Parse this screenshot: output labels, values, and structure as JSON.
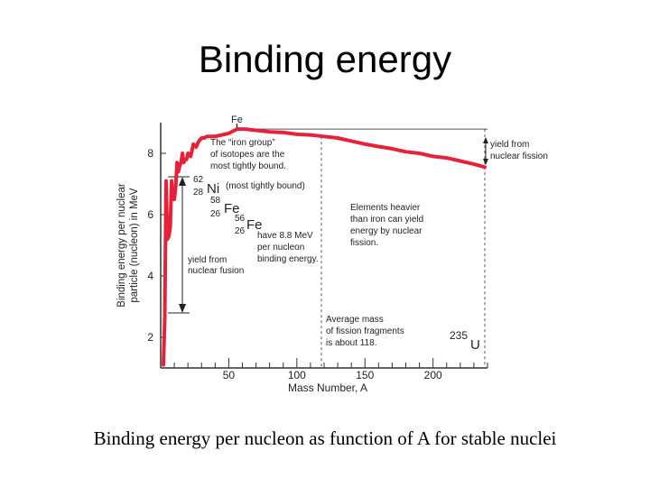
{
  "slide": {
    "title": "Binding energy",
    "caption": "Binding energy per nucleon as function of A for stable nuclei"
  },
  "chart_data": {
    "type": "line",
    "title": "",
    "xlabel": "Mass Number, A",
    "ylabel_line1": "Binding energy per nuclear",
    "ylabel_line2": "particle (nucleon) in MeV",
    "xlim": [
      0,
      240
    ],
    "ylim": [
      1,
      9
    ],
    "x_ticks": [
      50,
      100,
      150,
      200
    ],
    "y_ticks": [
      2,
      4,
      6,
      8
    ],
    "series_color": "#e8213a",
    "series": [
      {
        "x": [
          2,
          3,
          4,
          5,
          6,
          7,
          8,
          9,
          10,
          11,
          12,
          13,
          14,
          15,
          16,
          17,
          18,
          19,
          20,
          22,
          24,
          26,
          28,
          30,
          32,
          34,
          36,
          40,
          45,
          50,
          56,
          62,
          70,
          80,
          90,
          100,
          110,
          120,
          130,
          140,
          150,
          160,
          170,
          180,
          190,
          200,
          210,
          220,
          230,
          238
        ],
        "y": [
          1.1,
          2.6,
          7.1,
          5.2,
          5.3,
          5.6,
          7.1,
          6.5,
          6.5,
          6.9,
          7.7,
          7.4,
          7.6,
          7.7,
          8.0,
          7.7,
          7.8,
          7.8,
          8.0,
          7.9,
          8.3,
          8.2,
          8.4,
          8.5,
          8.5,
          8.55,
          8.55,
          8.55,
          8.6,
          8.65,
          8.79,
          8.79,
          8.75,
          8.7,
          8.68,
          8.62,
          8.6,
          8.55,
          8.5,
          8.4,
          8.3,
          8.22,
          8.15,
          8.05,
          8.0,
          7.9,
          7.85,
          7.75,
          7.65,
          7.55
        ]
      }
    ],
    "annotations": {
      "fe_top": "Fe",
      "iron_group_1": "The “iron group”",
      "iron_group_2": "of isotopes are the",
      "iron_group_3": "most tightly bound.",
      "ni_mass": "62",
      "ni_z": "28",
      "ni_sym": "Ni",
      "ni_note": "(most tightly bound)",
      "fe58_mass": "58",
      "fe58_z": "26",
      "fe58_sym": "Fe",
      "fe56_mass": "56",
      "fe56_z": "26",
      "fe56_sym": "Fe",
      "have_1": "have 8.8 MeV",
      "have_2": "per nucleon",
      "have_3": "binding energy.",
      "fusion_1": "yield from",
      "fusion_2": "nuclear fusion",
      "fission_1": "yield from",
      "fission_2": "nuclear fission",
      "heavier_1": "Elements heavier",
      "heavier_2": "than iron can yield",
      "heavier_3": "energy by nuclear",
      "heavier_4": "fission.",
      "avg_1": "Average mass",
      "avg_2": "of fission fragments",
      "avg_3": "is about 118.",
      "u_mass": "235",
      "u_sym": "U"
    }
  }
}
